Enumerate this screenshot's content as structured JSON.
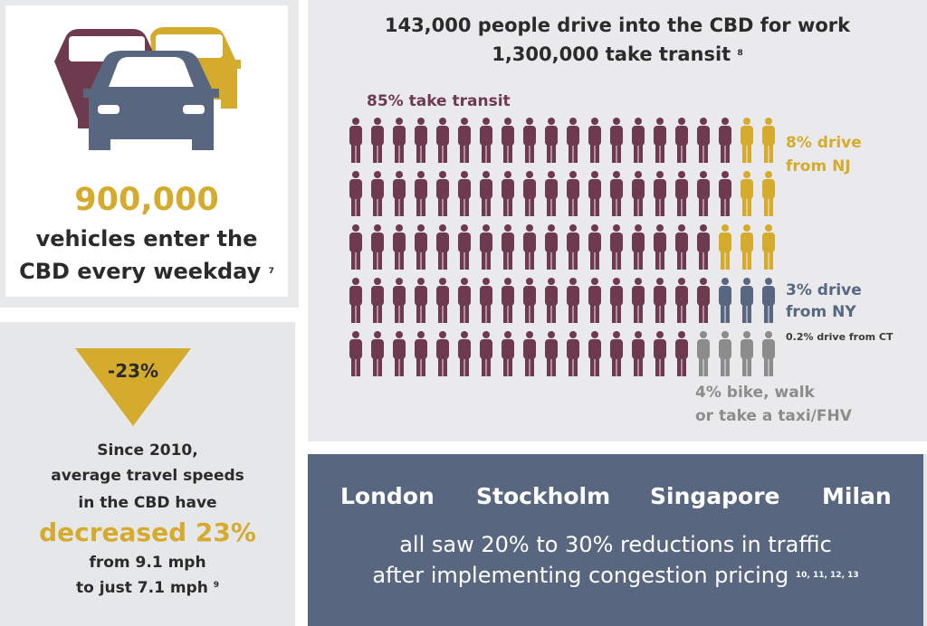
{
  "colors": {
    "transit": "#6e3a4e",
    "nj": "#d5ab2e",
    "ny": "#58677f",
    "other": "#8c8c8c",
    "dark_text": "#2b2b2b"
  },
  "vehicles": {
    "number": "900,000",
    "line1": "vehicles enter the",
    "line2": "CBD every weekday",
    "note": "7",
    "icon": "cars-icon"
  },
  "speed": {
    "badge": "-23%",
    "line1": "Since 2010,",
    "line2": "average travel speeds",
    "line3": "in the CBD have",
    "highlight": "decreased 23%",
    "line5": "from 9.1 mph",
    "line6": "to just 7.1 mph",
    "note": "9"
  },
  "commute": {
    "title_line1": "143,000 people drive into the CBD for work",
    "title_line2": "1,300,000 take transit",
    "title_note": "8",
    "transit_label": "85% take transit",
    "nj_label_1": "8% drive",
    "nj_label_2": "from NJ",
    "ny_label_1": "3% drive",
    "ny_label_2": "from NY",
    "ct_label": "0.2% drive from CT",
    "other_label_1": "4% bike, walk",
    "other_label_2": "or take a taxi/FHV",
    "icon": "person-icon",
    "rows": [
      {
        "transit": 18,
        "nj": 2,
        "ny": 0,
        "other": 0
      },
      {
        "transit": 18,
        "nj": 2,
        "ny": 0,
        "other": 0
      },
      {
        "transit": 17,
        "nj": 3,
        "ny": 0,
        "other": 0
      },
      {
        "transit": 17,
        "nj": 0,
        "ny": 3,
        "other": 0
      },
      {
        "transit": 16,
        "nj": 0,
        "ny": 0,
        "other": 4
      }
    ]
  },
  "cities": {
    "names": [
      "London",
      "Stockholm",
      "Singapore",
      "Milan"
    ],
    "line1": "all saw 20% to 30% reductions in traffic",
    "line2": "after implementing congestion pricing",
    "notes": "10, 11, 12, 13"
  }
}
